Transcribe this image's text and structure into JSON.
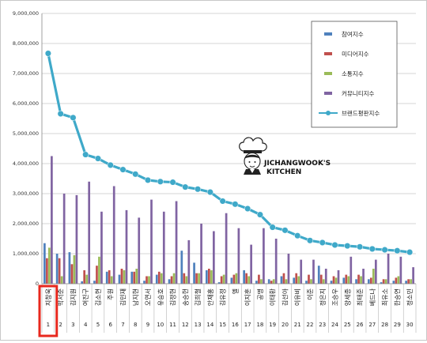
{
  "chart_data": {
    "type": "bar",
    "categories": [
      "지창욱",
      "박서준",
      "김지원",
      "여진구",
      "김소현",
      "주원",
      "김민재",
      "남지현",
      "오연서",
      "유승호",
      "김정현",
      "송승헌",
      "김희철",
      "안재홍",
      "김유정",
      "엘",
      "이지훈",
      "공명",
      "이태환",
      "김선아",
      "이유비",
      "이준",
      "정은지",
      "조승우",
      "양세종",
      "최태준",
      "베드나",
      "최유소",
      "한승연",
      "정소민"
    ],
    "x_index_labels": [
      "1",
      "2",
      "3",
      "4",
      "5",
      "6",
      "7",
      "8",
      "9",
      "10",
      "11",
      "12",
      "13",
      "14",
      "15",
      "16",
      "17",
      "18",
      "19",
      "20",
      "21",
      "22",
      "23",
      "24",
      "25",
      "26",
      "27",
      "28",
      "29",
      "30"
    ],
    "ylim": [
      0,
      9000000
    ],
    "y_ticks": [
      0,
      1000000,
      2000000,
      3000000,
      4000000,
      5000000,
      6000000,
      7000000,
      8000000,
      9000000
    ],
    "y_tick_labels": [
      "0",
      "1,000,000",
      "2,000,000",
      "3,000,000",
      "4,000,000",
      "5,000,000",
      "6,000,000",
      "7,000,000",
      "8,000,000",
      "9,000,000"
    ],
    "grid": "horizontal",
    "legend_position": "top-right",
    "series": [
      {
        "name": "참여지수",
        "type": "bar",
        "color": "#4f81bd",
        "values": [
          1350000,
          1000000,
          1050000,
          80000,
          100000,
          400000,
          300000,
          400000,
          100000,
          300000,
          150000,
          1100000,
          700000,
          450000,
          50000,
          200000,
          450000,
          100000,
          150000,
          250000,
          200000,
          100000,
          600000,
          100000,
          200000,
          150000,
          150000,
          50000,
          100000,
          100000
        ]
      },
      {
        "name": "미디어지수",
        "type": "bar",
        "color": "#c0504d",
        "values": [
          850000,
          850000,
          650000,
          450000,
          600000,
          450000,
          500000,
          400000,
          250000,
          400000,
          250000,
          350000,
          350000,
          500000,
          250000,
          300000,
          350000,
          300000,
          100000,
          350000,
          350000,
          300000,
          300000,
          250000,
          300000,
          300000,
          200000,
          150000,
          200000,
          150000
        ]
      },
      {
        "name": "소통지수",
        "type": "bar",
        "color": "#9bbb59",
        "values": [
          1200000,
          250000,
          950000,
          300000,
          900000,
          250000,
          450000,
          500000,
          250000,
          350000,
          350000,
          250000,
          350000,
          450000,
          300000,
          350000,
          250000,
          150000,
          150000,
          150000,
          250000,
          150000,
          150000,
          200000,
          250000,
          250000,
          500000,
          150000,
          250000,
          150000
        ]
      },
      {
        "name": "커뮤니티지수",
        "type": "bar",
        "color": "#8064a2",
        "values": [
          4250000,
          3000000,
          2950000,
          3400000,
          2400000,
          3250000,
          2450000,
          2200000,
          2800000,
          2400000,
          2750000,
          1450000,
          2000000,
          1750000,
          2350000,
          1850000,
          1300000,
          1850000,
          1500000,
          1000000,
          800000,
          800000,
          500000,
          450000,
          900000,
          500000,
          800000,
          1000000,
          900000,
          550000
        ]
      },
      {
        "name": "브랜드평판지수",
        "type": "line",
        "color": "#3fa9c9",
        "values": [
          7670000,
          5660000,
          5530000,
          4300000,
          4170000,
          3950000,
          3800000,
          3650000,
          3450000,
          3400000,
          3380000,
          3220000,
          3150000,
          3050000,
          2750000,
          2650000,
          2500000,
          2300000,
          1880000,
          1780000,
          1600000,
          1440000,
          1370000,
          1290000,
          1260000,
          1230000,
          1160000,
          1130000,
          1100000,
          1050000
        ]
      }
    ]
  },
  "watermark": {
    "line1": "JICHANGWOOK'S",
    "line2": "KITCHEN"
  },
  "highlight": {
    "category_index": 0,
    "color": "#e8281e"
  }
}
